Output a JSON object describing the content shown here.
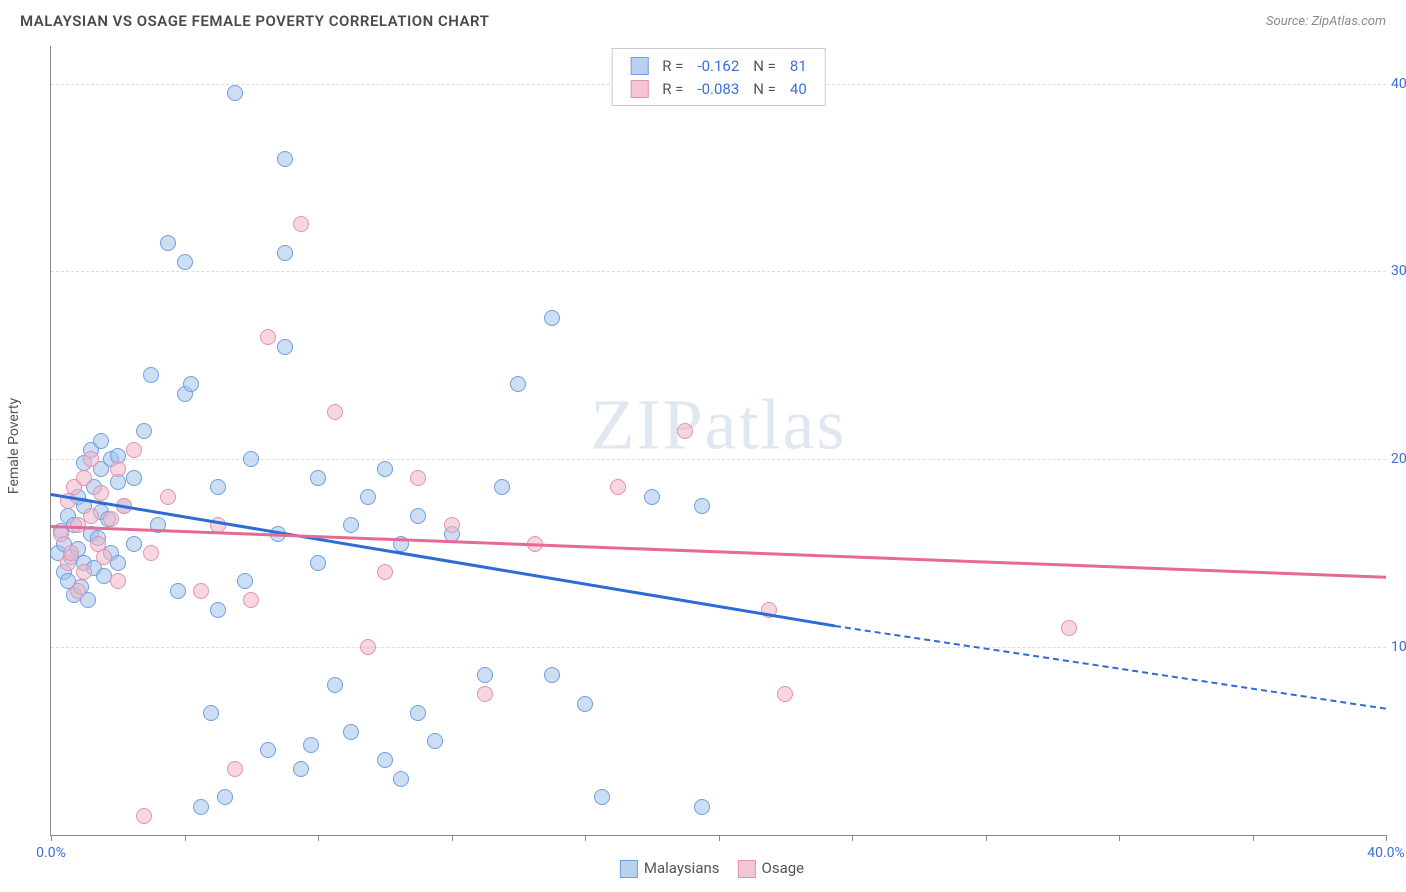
{
  "header": {
    "title": "MALAYSIAN VS OSAGE FEMALE POVERTY CORRELATION CHART",
    "source_prefix": "Source: ",
    "source_name": "ZipAtlas.com"
  },
  "watermark": {
    "z": "ZIP",
    "rest": "atlas"
  },
  "chart": {
    "type": "scatter",
    "ylabel": "Female Poverty",
    "xlim": [
      0,
      40
    ],
    "ylim": [
      0,
      42
    ],
    "x_ticks": [
      0,
      4,
      8,
      12,
      16,
      20,
      24,
      28,
      32,
      36,
      40
    ],
    "x_tick_labels_shown": {
      "0": "0.0%",
      "40": "40.0%"
    },
    "y_grid": [
      10,
      20,
      30,
      40
    ],
    "y_tick_labels": {
      "10": "10.0%",
      "20": "20.0%",
      "30": "30.0%",
      "40": "40.0%"
    },
    "background_color": "#ffffff",
    "grid_color": "#dddddd",
    "axis_color": "#888888",
    "tick_label_color": "#3a6fd8",
    "marker_radius": 8,
    "marker_border_width": 1.2,
    "legend_top": {
      "rows": [
        {
          "swatch_fill": "#b9d1ef",
          "swatch_border": "#6fa0e0",
          "r_label": "R =",
          "r": "-0.162",
          "n_label": "N =",
          "n": "81"
        },
        {
          "swatch_fill": "#f4c6d4",
          "swatch_border": "#e593ae",
          "r_label": "R =",
          "r": "-0.083",
          "n_label": "N =",
          "n": "40"
        }
      ],
      "value_color": "#3a6fd8",
      "label_color": "#555555"
    },
    "legend_bottom": {
      "items": [
        {
          "swatch_fill": "#b9d1ef",
          "swatch_border": "#6fa0e0",
          "label": "Malaysians"
        },
        {
          "swatch_fill": "#f4c6d4",
          "swatch_border": "#e593ae",
          "label": "Osage"
        }
      ]
    },
    "series": [
      {
        "name": "Malaysians",
        "fill": "rgba(160,195,235,0.55)",
        "stroke": "#6fa0e0",
        "trend_color": "#2d6cd4",
        "trend": {
          "x1": 0,
          "y1": 18.2,
          "x2": 23.5,
          "y2": 11.2,
          "x2_ext": 40,
          "y2_ext": 6.8
        },
        "points": [
          [
            0.2,
            15.0
          ],
          [
            0.3,
            16.2
          ],
          [
            0.4,
            14.0
          ],
          [
            0.4,
            15.5
          ],
          [
            0.5,
            17.0
          ],
          [
            0.5,
            13.5
          ],
          [
            0.6,
            14.8
          ],
          [
            0.7,
            16.5
          ],
          [
            0.7,
            12.8
          ],
          [
            0.8,
            15.2
          ],
          [
            0.8,
            18.0
          ],
          [
            0.9,
            13.2
          ],
          [
            1.0,
            14.5
          ],
          [
            1.0,
            17.5
          ],
          [
            1.0,
            19.8
          ],
          [
            1.1,
            12.5
          ],
          [
            1.2,
            16.0
          ],
          [
            1.2,
            20.5
          ],
          [
            1.3,
            14.2
          ],
          [
            1.3,
            18.5
          ],
          [
            1.4,
            15.8
          ],
          [
            1.5,
            17.2
          ],
          [
            1.5,
            19.5
          ],
          [
            1.5,
            21.0
          ],
          [
            1.6,
            13.8
          ],
          [
            1.7,
            16.8
          ],
          [
            1.8,
            20.0
          ],
          [
            1.8,
            15.0
          ],
          [
            2.0,
            18.8
          ],
          [
            2.0,
            14.5
          ],
          [
            2.0,
            20.2
          ],
          [
            2.2,
            17.5
          ],
          [
            2.5,
            19.0
          ],
          [
            2.5,
            15.5
          ],
          [
            2.8,
            21.5
          ],
          [
            3.0,
            24.5
          ],
          [
            3.2,
            16.5
          ],
          [
            3.5,
            31.5
          ],
          [
            3.8,
            13.0
          ],
          [
            4.0,
            23.5
          ],
          [
            4.0,
            30.5
          ],
          [
            4.2,
            24.0
          ],
          [
            4.5,
            1.5
          ],
          [
            4.8,
            6.5
          ],
          [
            5.0,
            12.0
          ],
          [
            5.0,
            18.5
          ],
          [
            5.2,
            2.0
          ],
          [
            5.5,
            39.5
          ],
          [
            5.8,
            13.5
          ],
          [
            6.0,
            20.0
          ],
          [
            6.5,
            4.5
          ],
          [
            6.8,
            16.0
          ],
          [
            7.0,
            26.0
          ],
          [
            7.0,
            31.0
          ],
          [
            7.0,
            36.0
          ],
          [
            7.5,
            3.5
          ],
          [
            7.8,
            4.8
          ],
          [
            8.0,
            14.5
          ],
          [
            8.0,
            19.0
          ],
          [
            8.5,
            8.0
          ],
          [
            9.0,
            5.5
          ],
          [
            9.0,
            16.5
          ],
          [
            9.5,
            18.0
          ],
          [
            10.0,
            4.0
          ],
          [
            10.0,
            19.5
          ],
          [
            10.5,
            3.0
          ],
          [
            10.5,
            15.5
          ],
          [
            11.0,
            6.5
          ],
          [
            11.0,
            17.0
          ],
          [
            11.5,
            5.0
          ],
          [
            12.0,
            16.0
          ],
          [
            13.0,
            8.5
          ],
          [
            13.5,
            18.5
          ],
          [
            14.0,
            24.0
          ],
          [
            15.0,
            8.5
          ],
          [
            15.0,
            27.5
          ],
          [
            16.0,
            7.0
          ],
          [
            16.5,
            2.0
          ],
          [
            18.0,
            18.0
          ],
          [
            19.5,
            1.5
          ],
          [
            19.5,
            17.5
          ]
        ]
      },
      {
        "name": "Osage",
        "fill": "rgba(240,180,200,0.55)",
        "stroke": "#e593ae",
        "trend_color": "#e56a94",
        "trend": {
          "x1": 0,
          "y1": 16.5,
          "x2": 40,
          "y2": 13.8
        },
        "points": [
          [
            0.3,
            16.0
          ],
          [
            0.5,
            14.5
          ],
          [
            0.5,
            17.8
          ],
          [
            0.6,
            15.0
          ],
          [
            0.7,
            18.5
          ],
          [
            0.8,
            13.0
          ],
          [
            0.8,
            16.5
          ],
          [
            1.0,
            19.0
          ],
          [
            1.0,
            14.0
          ],
          [
            1.2,
            17.0
          ],
          [
            1.2,
            20.0
          ],
          [
            1.4,
            15.5
          ],
          [
            1.5,
            18.2
          ],
          [
            1.6,
            14.8
          ],
          [
            1.8,
            16.8
          ],
          [
            2.0,
            19.5
          ],
          [
            2.0,
            13.5
          ],
          [
            2.2,
            17.5
          ],
          [
            2.5,
            20.5
          ],
          [
            2.8,
            1.0
          ],
          [
            3.0,
            15.0
          ],
          [
            3.5,
            18.0
          ],
          [
            4.5,
            13.0
          ],
          [
            5.0,
            16.5
          ],
          [
            5.5,
            3.5
          ],
          [
            6.0,
            12.5
          ],
          [
            6.5,
            26.5
          ],
          [
            7.5,
            32.5
          ],
          [
            8.5,
            22.5
          ],
          [
            9.5,
            10.0
          ],
          [
            10.0,
            14.0
          ],
          [
            11.0,
            19.0
          ],
          [
            12.0,
            16.5
          ],
          [
            13.0,
            7.5
          ],
          [
            14.5,
            15.5
          ],
          [
            17.0,
            18.5
          ],
          [
            19.0,
            21.5
          ],
          [
            21.5,
            12.0
          ],
          [
            22.0,
            7.5
          ],
          [
            30.5,
            11.0
          ]
        ]
      }
    ]
  }
}
